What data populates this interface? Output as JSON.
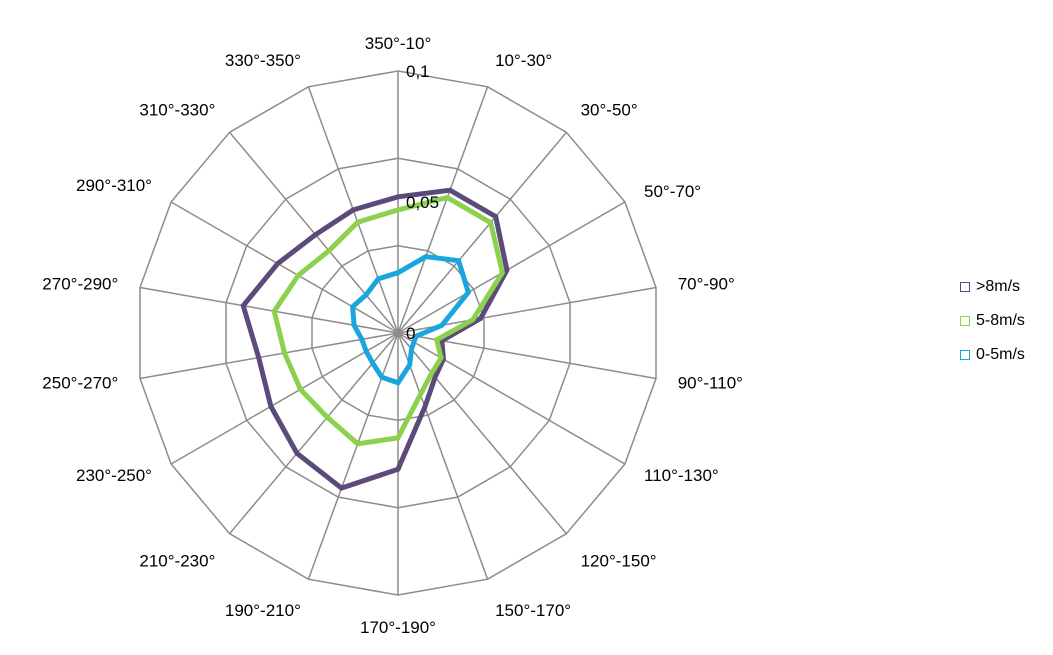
{
  "chart_data": {
    "type": "radar",
    "categories": [
      "350°-10°",
      "10°-30°",
      "30°-50°",
      "50°-70°",
      "70°-90°",
      "90°-110°",
      "110°-130°",
      "120°-150°",
      "150°-170°",
      "170°-190°",
      "190°-210°",
      "210°-230°",
      "230°-250°",
      "250°-270°",
      "270°-290°",
      "290°-310°",
      "310°-330°",
      "330°-350°"
    ],
    "series": [
      {
        "name": ">8m/s",
        "color": "#5b4a7a",
        "values": [
          0.052,
          0.058,
          0.058,
          0.048,
          0.032,
          0.017,
          0.02,
          0.022,
          0.03,
          0.052,
          0.063,
          0.06,
          0.056,
          0.054,
          0.06,
          0.053,
          0.049,
          0.05
        ]
      },
      {
        "name": "5-8m/s",
        "color": "#8bd14d",
        "values": [
          0.047,
          0.055,
          0.055,
          0.046,
          0.029,
          0.015,
          0.019,
          0.02,
          0.025,
          0.04,
          0.045,
          0.042,
          0.043,
          0.044,
          0.048,
          0.044,
          0.041,
          0.045
        ]
      },
      {
        "name": "0-5m/s",
        "color": "#1aa6dc",
        "values": [
          0.023,
          0.031,
          0.036,
          0.031,
          0.017,
          0.007,
          0.007,
          0.008,
          0.013,
          0.019,
          0.018,
          0.015,
          0.014,
          0.014,
          0.017,
          0.02,
          0.019,
          0.022
        ]
      }
    ],
    "radial_ticks": [
      "0",
      "0,05",
      "0,1"
    ],
    "rmax": 0.1,
    "legend_position": "right",
    "grid": true
  }
}
